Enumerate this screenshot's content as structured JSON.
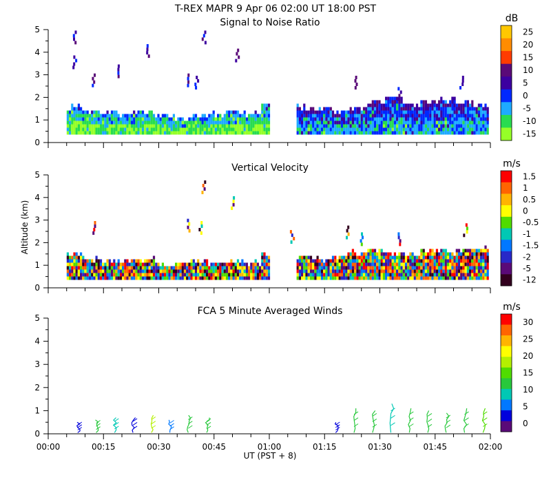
{
  "figure_title": "T-REX   MAPR   9 Apr 06   02:00 UT   18:00   PST",
  "x_axis_label": "UT  (PST + 8)",
  "y_axis_label": "Altitude (km)",
  "x_ticks": [
    "00:00",
    "00:15",
    "00:30",
    "00:45",
    "01:00",
    "01:15",
    "01:30",
    "01:45",
    "02:00"
  ],
  "y_ticks": [
    "0",
    "1",
    "2",
    "3",
    "4",
    "5"
  ],
  "chart_data": [
    {
      "type": "heatmap",
      "title": "Signal to Noise Ratio",
      "units": "dB",
      "xlim": [
        "00:00",
        "02:00"
      ],
      "ylim": [
        0,
        5
      ],
      "colorbar_labels": [
        "25",
        "20",
        "15",
        "10",
        "5",
        "0",
        "-5",
        "-10",
        "-15"
      ],
      "colors": [
        "#ffc800",
        "#ff8c00",
        "#ff3c00",
        "#5a0a78",
        "#3c00a0",
        "#0028ff",
        "#1eaaff",
        "#28dc50",
        "#96ff28"
      ],
      "data_gap_minutes": [
        60,
        66
      ],
      "echo_top_km": [
        1.4,
        1.5,
        1.3,
        1.3,
        1.2,
        1.3,
        1.1,
        1.0,
        1.1,
        1.2,
        1.3,
        1.2,
        1.6,
        0,
        1.5,
        1.4,
        1.3,
        1.4,
        1.7,
        1.9,
        1.6,
        1.7,
        1.8,
        1.7,
        1.6
      ]
    },
    {
      "type": "heatmap",
      "title": "Vertical Velocity",
      "units": "m/s",
      "xlim": [
        "00:00",
        "02:00"
      ],
      "ylim": [
        0,
        5
      ],
      "colorbar_labels": [
        "1.5",
        "1",
        "0.5",
        "0",
        "-0.5",
        "-1",
        "-1.5",
        "-2",
        "-5",
        "-12"
      ],
      "colors": [
        "#ff0000",
        "#ff6400",
        "#ffb400",
        "#ffff00",
        "#50dc00",
        "#00c8b4",
        "#0078ff",
        "#2828c8",
        "#5a0a78",
        "#32001e"
      ],
      "data_gap_minutes": [
        60,
        66
      ],
      "echo_top_km": [
        1.3,
        1.4,
        1.2,
        1.1,
        1.1,
        1.2,
        1.0,
        1.0,
        1.1,
        1.0,
        1.1,
        1.0,
        1.4,
        0,
        1.3,
        1.2,
        1.3,
        1.5,
        1.6,
        1.5,
        1.4,
        1.6,
        1.5,
        1.6,
        1.7
      ]
    },
    {
      "type": "wind_barbs",
      "title": "FCA 5 Minute Averaged Winds",
      "units": "m/s",
      "xlim": [
        "00:00",
        "02:00"
      ],
      "ylim": [
        0,
        5
      ],
      "colorbar_labels": [
        "30",
        "25",
        "20",
        "15",
        "10",
        "5",
        "0"
      ],
      "colors": [
        "#ff0000",
        "#ff6400",
        "#ffb400",
        "#ffff00",
        "#b4f000",
        "#50dc00",
        "#28c83c",
        "#00c8b4",
        "#0078ff",
        "#0000dc",
        "#5a0a78"
      ],
      "profile_times_min": [
        8,
        13,
        18,
        23,
        28,
        33,
        38,
        43,
        78,
        83,
        88,
        93,
        98,
        103,
        108,
        113,
        118
      ],
      "max_height_km": [
        0.5,
        0.6,
        0.7,
        0.7,
        0.8,
        0.6,
        0.8,
        0.7,
        0.5,
        1.1,
        1.0,
        1.3,
        1.1,
        1.0,
        0.9,
        1.1,
        1.1
      ],
      "speed_ms": [
        4,
        12,
        9,
        3,
        19,
        6,
        12,
        11,
        4,
        13,
        12,
        9,
        12,
        13,
        13,
        13,
        15
      ]
    }
  ]
}
